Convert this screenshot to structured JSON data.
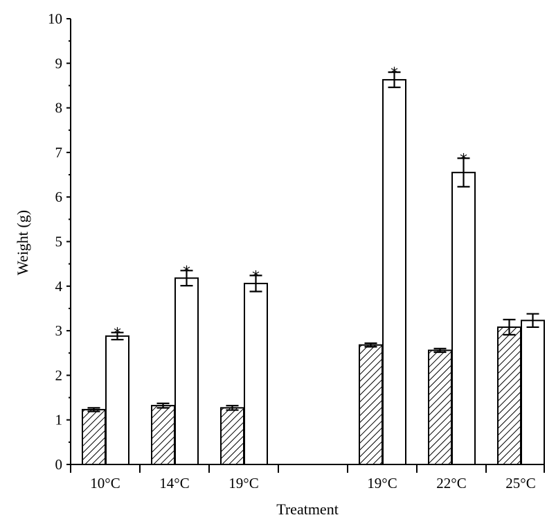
{
  "chart_data": {
    "type": "bar",
    "xlabel": "Treatment",
    "ylabel": "Weight (g)",
    "ylim": [
      0,
      10
    ],
    "yticks": [
      0,
      1,
      2,
      3,
      4,
      5,
      6,
      7,
      8,
      9,
      10
    ],
    "grid": false,
    "legend": "none",
    "categories": [
      "10°C",
      "14°C",
      "19°C",
      "19°C",
      "22°C",
      "25°C"
    ],
    "series": [
      {
        "pattern": "hatched",
        "values": [
          1.23,
          1.32,
          1.27,
          2.68,
          2.56,
          3.08
        ],
        "errors": [
          0.04,
          0.05,
          0.05,
          0.04,
          0.04,
          0.17
        ]
      },
      {
        "pattern": "open",
        "values": [
          2.88,
          4.18,
          4.06,
          8.63,
          6.55,
          3.23
        ],
        "errors": [
          0.08,
          0.17,
          0.18,
          0.17,
          0.32,
          0.15
        ],
        "significance": [
          "*",
          "*",
          "*",
          "*",
          "*",
          ""
        ]
      }
    ],
    "colors": {
      "axis": "#000000",
      "open_fill": "#ffffff",
      "hatch": "#000000"
    }
  }
}
